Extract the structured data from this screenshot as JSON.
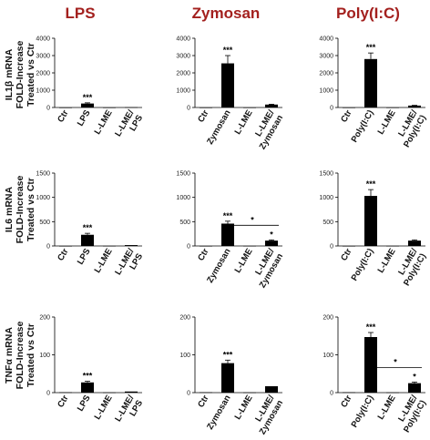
{
  "columns": [
    "LPS",
    "Zymosan",
    "Poly(I:C)"
  ],
  "rows": [
    {
      "label_lines": [
        "IL1β mRNA",
        "FOLD-Increase",
        "Treated vs Ctr"
      ]
    },
    {
      "label_lines": [
        "IL6 mRNA",
        "FOLD-Increase",
        "Treated vs Ctr"
      ]
    },
    {
      "label_lines": [
        "TNFα mRNA",
        "FOLD-Increase",
        "Treated vs Ctr"
      ]
    }
  ],
  "chart_data": [
    {
      "type": "bar",
      "row": 0,
      "col": 0,
      "categories": [
        "Ctr",
        "LPS",
        "L-LME",
        "L-LME/ LPS"
      ],
      "category_lines": [
        [
          "Ctr"
        ],
        [
          "LPS"
        ],
        [
          "L-LME"
        ],
        [
          "L-LME/",
          "LPS"
        ]
      ],
      "values": [
        1,
        230,
        2,
        15
      ],
      "errors": [
        0,
        40,
        0,
        0
      ],
      "ylim": [
        0,
        4000
      ],
      "yticks": [
        0,
        1000,
        2000,
        3000,
        4000
      ],
      "annotations": [
        {
          "bar": 1,
          "text": "***"
        }
      ],
      "brackets": []
    },
    {
      "type": "bar",
      "row": 0,
      "col": 1,
      "categories": [
        "Ctr",
        "Zymosan",
        "L-LME",
        "L-LME/ Zymosan"
      ],
      "category_lines": [
        [
          "Ctr"
        ],
        [
          "Zymosan"
        ],
        [
          "L-LME"
        ],
        [
          "L-LME/",
          "Zymosan"
        ]
      ],
      "values": [
        1,
        2550,
        2,
        170
      ],
      "errors": [
        0,
        450,
        0,
        20
      ],
      "ylim": [
        0,
        4000
      ],
      "yticks": [
        0,
        1000,
        2000,
        3000,
        4000
      ],
      "annotations": [
        {
          "bar": 1,
          "text": "***"
        }
      ],
      "brackets": []
    },
    {
      "type": "bar",
      "row": 0,
      "col": 2,
      "categories": [
        "Ctr",
        "Poly(I:C)",
        "L-LME",
        "L-LME/ Poly(I:C)"
      ],
      "category_lines": [
        [
          "Ctr"
        ],
        [
          "Poly(I:C)"
        ],
        [
          "L-LME"
        ],
        [
          "L-LME/",
          "Poly(I:C)"
        ]
      ],
      "values": [
        1,
        2800,
        2,
        110
      ],
      "errors": [
        0,
        350,
        0,
        15
      ],
      "ylim": [
        0,
        4000
      ],
      "yticks": [
        0,
        1000,
        2000,
        3000,
        4000
      ],
      "annotations": [
        {
          "bar": 1,
          "text": "***"
        }
      ],
      "brackets": []
    },
    {
      "type": "bar",
      "row": 1,
      "col": 0,
      "categories": [
        "Ctr",
        "LPS",
        "L-LME",
        "L-LME/ LPS"
      ],
      "category_lines": [
        [
          "Ctr"
        ],
        [
          "LPS"
        ],
        [
          "L-LME"
        ],
        [
          "L-LME/",
          "LPS"
        ]
      ],
      "values": [
        1,
        230,
        2,
        18
      ],
      "errors": [
        0,
        30,
        0,
        0
      ],
      "ylim": [
        0,
        1500
      ],
      "yticks": [
        0,
        500,
        1000,
        1500
      ],
      "annotations": [
        {
          "bar": 1,
          "text": "***"
        }
      ],
      "brackets": []
    },
    {
      "type": "bar",
      "row": 1,
      "col": 1,
      "categories": [
        "Ctr",
        "Zymosan",
        "L-LME",
        "L-LME/ Zymosan"
      ],
      "category_lines": [
        [
          "Ctr"
        ],
        [
          "Zymosan"
        ],
        [
          "L-LME"
        ],
        [
          "L-LME/",
          "Zymosan"
        ]
      ],
      "values": [
        1,
        460,
        2,
        110
      ],
      "errors": [
        0,
        50,
        0,
        15
      ],
      "ylim": [
        0,
        1500
      ],
      "yticks": [
        0,
        500,
        1000,
        1500
      ],
      "annotations": [
        {
          "bar": 1,
          "text": "***"
        },
        {
          "bar": 3,
          "text": "*"
        }
      ],
      "brackets": [
        {
          "from": 1,
          "to": 3,
          "text": "*"
        }
      ]
    },
    {
      "type": "bar",
      "row": 1,
      "col": 2,
      "categories": [
        "Ctr",
        "Poly(I:C)",
        "L-LME",
        "L-LME/ Poly(I:C)"
      ],
      "category_lines": [
        [
          "Ctr"
        ],
        [
          "Poly(I:C)"
        ],
        [
          "L-LME"
        ],
        [
          "L-LME/",
          "Poly(I:C)"
        ]
      ],
      "values": [
        1,
        1030,
        2,
        110
      ],
      "errors": [
        0,
        130,
        0,
        15
      ],
      "ylim": [
        0,
        1500
      ],
      "yticks": [
        0,
        500,
        1000,
        1500
      ],
      "annotations": [
        {
          "bar": 1,
          "text": "***"
        }
      ],
      "brackets": []
    },
    {
      "type": "bar",
      "row": 2,
      "col": 0,
      "categories": [
        "Ctr",
        "LPS",
        "L-LME",
        "L-LME/ LPS"
      ],
      "category_lines": [
        [
          "Ctr"
        ],
        [
          "LPS"
        ],
        [
          "L-LME"
        ],
        [
          "L-LME/",
          "LPS"
        ]
      ],
      "values": [
        1,
        27,
        0.5,
        3
      ],
      "errors": [
        0,
        3,
        0,
        0
      ],
      "ylim": [
        0,
        200
      ],
      "yticks": [
        0,
        100,
        200
      ],
      "annotations": [
        {
          "bar": 1,
          "text": "***"
        }
      ],
      "brackets": []
    },
    {
      "type": "bar",
      "row": 2,
      "col": 1,
      "categories": [
        "Ctr",
        "Zymosan",
        "L-LME",
        "L-LME/ Zymosan"
      ],
      "category_lines": [
        [
          "Ctr"
        ],
        [
          "Zymosan"
        ],
        [
          "L-LME"
        ],
        [
          "L-LME/",
          "Zymosan"
        ]
      ],
      "values": [
        1,
        78,
        0.5,
        17
      ],
      "errors": [
        0,
        8,
        0,
        0
      ],
      "ylim": [
        0,
        200
      ],
      "yticks": [
        0,
        100,
        200
      ],
      "annotations": [
        {
          "bar": 1,
          "text": "***"
        }
      ],
      "brackets": []
    },
    {
      "type": "bar",
      "row": 2,
      "col": 2,
      "categories": [
        "Ctr",
        "Poly(I:C)",
        "L-LME",
        "L-LME/ Poly(I:C)"
      ],
      "category_lines": [
        [
          "Ctr"
        ],
        [
          "Poly(I:C)"
        ],
        [
          "L-LME"
        ],
        [
          "L-LME/",
          "Poly(I:C)"
        ]
      ],
      "values": [
        1,
        147,
        0.5,
        25
      ],
      "errors": [
        0,
        12,
        0,
        3
      ],
      "ylim": [
        0,
        200
      ],
      "yticks": [
        0,
        100,
        200
      ],
      "annotations": [
        {
          "bar": 1,
          "text": "***"
        },
        {
          "bar": 3,
          "text": "*"
        }
      ],
      "brackets": [
        {
          "from": 1,
          "to": 3,
          "text": "*"
        }
      ]
    }
  ]
}
